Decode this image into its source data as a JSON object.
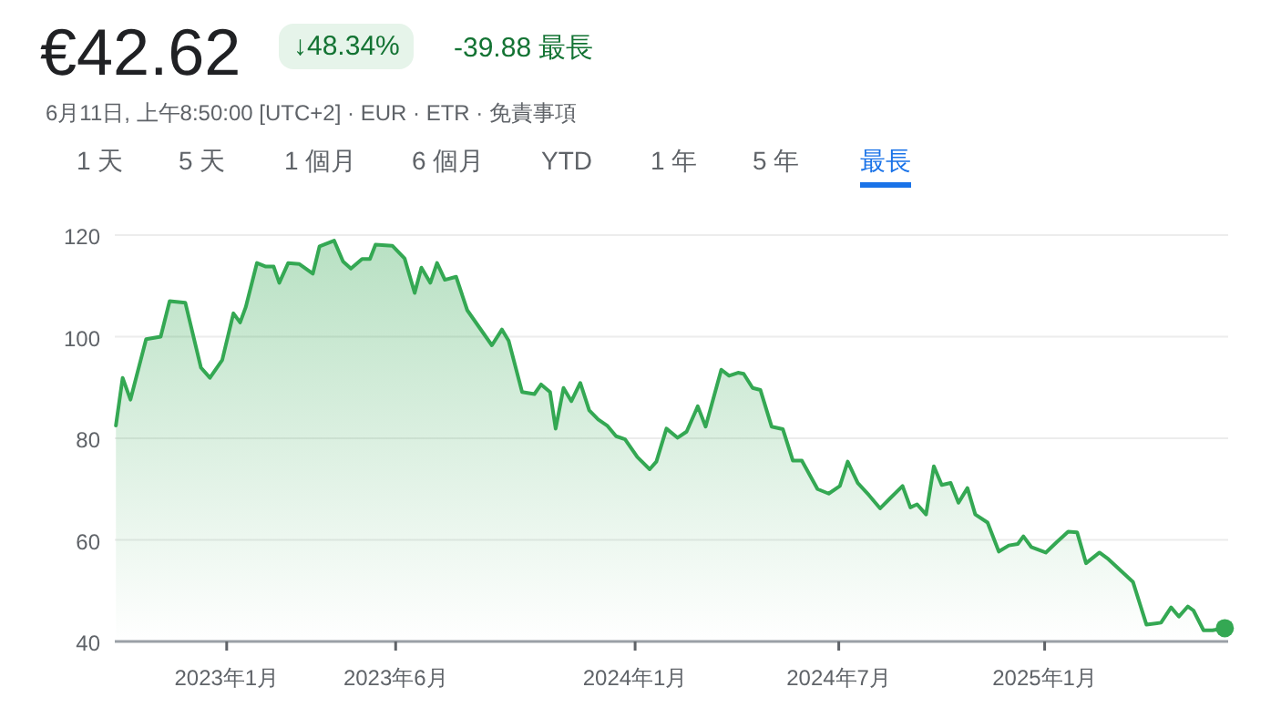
{
  "chart_data": {
    "type": "area",
    "title": "€42.62",
    "subtitle": "6月11日, 上午8:50:00 [UTC+2] · EUR · ETR · 免責事項",
    "annotations": [
      "↓48.34%",
      "-39.88 最長",
      "1 天",
      "5 天",
      "1 個月",
      "6 個月",
      "YTD",
      "1 年",
      "5 年",
      "最長"
    ],
    "xlim": [
      "2022-09-23",
      "2025-06-14"
    ],
    "xticks": [
      {
        "value": "2023-01-01",
        "label": "2023年1月"
      },
      {
        "value": "2023-06-01",
        "label": "2023年6月"
      },
      {
        "value": "2024-01-01",
        "label": "2024年1月"
      },
      {
        "value": "2024-07-01",
        "label": "2024年7月"
      },
      {
        "value": "2025-01-01",
        "label": "2025年1月"
      }
    ],
    "ylim": [
      40,
      120
    ],
    "yticks": [
      40,
      60,
      80,
      100,
      120
    ],
    "grid": "y",
    "series": [
      {
        "color": "#34a853",
        "x": [
          "2022-09-24",
          "2022-09-30",
          "2022-10-07",
          "2022-10-21",
          "2022-11-03",
          "2022-11-11",
          "2022-11-25",
          "2022-12-09",
          "2022-12-17",
          "2022-12-28",
          "2023-01-07",
          "2023-01-13",
          "2023-01-18",
          "2023-01-28",
          "2023-02-05",
          "2023-02-12",
          "2023-02-17",
          "2023-02-25",
          "2023-03-07",
          "2023-03-19",
          "2023-03-25",
          "2023-04-07",
          "2023-04-15",
          "2023-04-22",
          "2023-05-02",
          "2023-05-09",
          "2023-05-14",
          "2023-05-29",
          "2023-06-09",
          "2023-06-18",
          "2023-06-24",
          "2023-07-02",
          "2023-07-08",
          "2023-07-15",
          "2023-07-25",
          "2023-08-04",
          "2023-08-26",
          "2023-09-04",
          "2023-09-10",
          "2023-09-22",
          "2023-10-03",
          "2023-10-09",
          "2023-10-17",
          "2023-10-22",
          "2023-10-29",
          "2023-11-05",
          "2023-11-13",
          "2023-11-21",
          "2023-11-29",
          "2023-12-07",
          "2023-12-15",
          "2023-12-23",
          "2024-01-03",
          "2024-01-14",
          "2024-01-20",
          "2024-01-29",
          "2024-02-08",
          "2024-02-16",
          "2024-02-26",
          "2024-03-04",
          "2024-03-18",
          "2024-03-25",
          "2024-04-02",
          "2024-04-07",
          "2024-04-15",
          "2024-04-22",
          "2024-05-02",
          "2024-05-12",
          "2024-05-21",
          "2024-05-29",
          "2024-06-12",
          "2024-06-22",
          "2024-07-02",
          "2024-07-09",
          "2024-07-18",
          "2024-07-28",
          "2024-08-07",
          "2024-08-16",
          "2024-08-27",
          "2024-09-03",
          "2024-09-09",
          "2024-09-17",
          "2024-09-24",
          "2024-10-01",
          "2024-10-09",
          "2024-10-16",
          "2024-10-24",
          "2024-10-31",
          "2024-11-11",
          "2024-11-21",
          "2024-11-30",
          "2024-12-08",
          "2024-12-13",
          "2024-12-20",
          "2025-01-02",
          "2025-01-12",
          "2025-01-22",
          "2025-01-30",
          "2025-02-07",
          "2025-02-19",
          "2025-02-27",
          "2025-03-21",
          "2025-04-02",
          "2025-04-15",
          "2025-04-24",
          "2025-05-01",
          "2025-05-09",
          "2025-05-14",
          "2025-05-23",
          "2025-05-31",
          "2025-06-11"
        ],
        "values": [
          82.5,
          91.9,
          87.6,
          99.5,
          100,
          107,
          106.7,
          93.9,
          91.9,
          95.4,
          104.6,
          102.8,
          105.8,
          114.5,
          113.8,
          113.8,
          110.6,
          114.5,
          114.3,
          112.4,
          117.8,
          118.9,
          114.8,
          113.4,
          115.3,
          115.3,
          118.1,
          117.9,
          115.4,
          108.6,
          113.6,
          110.6,
          114.5,
          111.2,
          111.8,
          105.2,
          98.3,
          101.4,
          99.2,
          89.1,
          88.7,
          90.6,
          89.1,
          81.9,
          89.9,
          87.3,
          90.9,
          85.5,
          83.7,
          82.5,
          80.4,
          79.8,
          76.3,
          73.9,
          75.4,
          81.9,
          80.1,
          81.3,
          86.3,
          82.3,
          93.5,
          92.3,
          92.9,
          92.7,
          89.9,
          89.5,
          82.3,
          81.8,
          75.6,
          75.6,
          70.0,
          69.1,
          70.6,
          75.4,
          71.2,
          68.8,
          66.2,
          68.2,
          70.6,
          66.4,
          67.0,
          65.0,
          74.5,
          70.8,
          71.2,
          67.3,
          70.2,
          65.0,
          63.4,
          57.7,
          58.9,
          59.2,
          60.7,
          58.6,
          57.5,
          59.6,
          61.6,
          61.5,
          55.4,
          57.5,
          56.2,
          51.7,
          43.3,
          43.7,
          46.7,
          44.9,
          46.9,
          46.1,
          42.2,
          42.2,
          42.62
        ]
      },
      {
        "type": "scatter",
        "color": "#34a853",
        "x": [
          "2025-06-11"
        ],
        "values": [
          42.62
        ]
      }
    ]
  }
}
